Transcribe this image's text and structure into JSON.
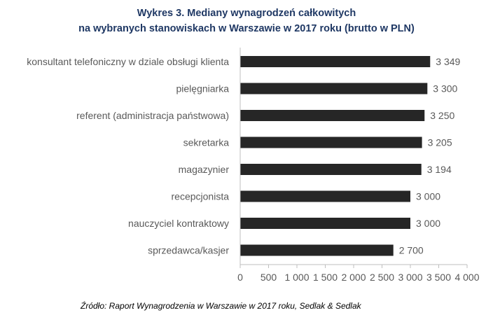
{
  "chart_data": {
    "type": "bar",
    "orientation": "horizontal",
    "title": "Wykres 3. Mediany wynagrodzeń całkowitych",
    "subtitle": "na wybranych stanowiskach w Warszawie w 2017 roku (brutto w PLN)",
    "categories": [
      "konsultant telefoniczny w dziale obsługi klienta",
      "pielęgniarka",
      "referent (administracja państwowa)",
      "sekretarka",
      "magazynier",
      "recepcjonista",
      "nauczyciel kontraktowy",
      "sprzedawca/kasjer"
    ],
    "values": [
      3349,
      3300,
      3250,
      3205,
      3194,
      3000,
      3000,
      2700
    ],
    "data_labels": [
      "3 349",
      "3 300",
      "3 250",
      "3 205",
      "3 194",
      "3 000",
      "3 000",
      "2 700"
    ],
    "xlim": [
      0,
      4000
    ],
    "x_ticks": [
      0,
      500,
      1000,
      1500,
      2000,
      2500,
      3000,
      3500,
      4000
    ],
    "x_tick_labels": [
      "0",
      "500",
      "1 000",
      "1 500",
      "2 000",
      "2 500",
      "3 000",
      "3 500",
      "4 000"
    ],
    "xlabel": "",
    "ylabel": "",
    "grid": false,
    "legend": "none",
    "bar_color": "#262626",
    "title_color": "#1f3864"
  },
  "source": "Źródło: Raport Wynagrodzenia w Warszawie w 2017 roku, Sedlak & Sedlak"
}
